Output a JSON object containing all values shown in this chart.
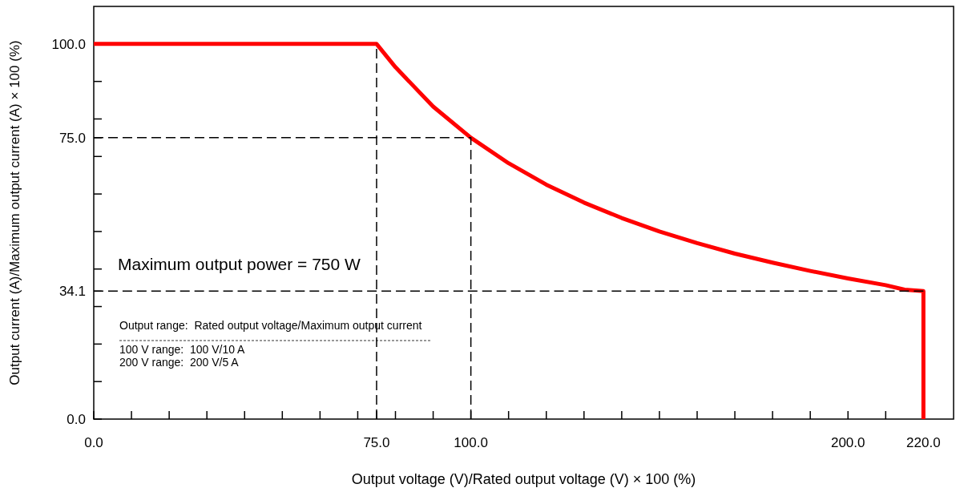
{
  "chart_data": {
    "type": "line",
    "xlabel": "Output voltage (V)/Rated output voltage (V) × 100 (%)",
    "ylabel": "Output current (A)/Maximum output current (A) × 100 (%)",
    "xlim": [
      0,
      228
    ],
    "ylim": [
      0,
      110
    ],
    "xticks": [
      {
        "value": 0,
        "label": "0.0"
      },
      {
        "value": 10,
        "label": null
      },
      {
        "value": 20,
        "label": null
      },
      {
        "value": 30,
        "label": null
      },
      {
        "value": 40,
        "label": null
      },
      {
        "value": 50,
        "label": null
      },
      {
        "value": 60,
        "label": null
      },
      {
        "value": 70,
        "label": null
      },
      {
        "value": 75,
        "label": "75.0"
      },
      {
        "value": 80,
        "label": null
      },
      {
        "value": 90,
        "label": null
      },
      {
        "value": 100,
        "label": "100.0"
      },
      {
        "value": 110,
        "label": null
      },
      {
        "value": 120,
        "label": null
      },
      {
        "value": 130,
        "label": null
      },
      {
        "value": 140,
        "label": null
      },
      {
        "value": 150,
        "label": null
      },
      {
        "value": 160,
        "label": null
      },
      {
        "value": 170,
        "label": null
      },
      {
        "value": 180,
        "label": null
      },
      {
        "value": 190,
        "label": null
      },
      {
        "value": 200,
        "label": "200.0"
      },
      {
        "value": 210,
        "label": null
      },
      {
        "value": 220,
        "label": "220.0"
      }
    ],
    "yticks": [
      {
        "value": 0,
        "label": "0.0"
      },
      {
        "value": 10,
        "label": null
      },
      {
        "value": 20,
        "label": null
      },
      {
        "value": 30,
        "label": null
      },
      {
        "value": 34.1,
        "label": "34.1"
      },
      {
        "value": 40,
        "label": null
      },
      {
        "value": 50,
        "label": null
      },
      {
        "value": 60,
        "label": null
      },
      {
        "value": 70,
        "label": null
      },
      {
        "value": 75,
        "label": "75.0"
      },
      {
        "value": 80,
        "label": null
      },
      {
        "value": 90,
        "label": null
      },
      {
        "value": 100,
        "label": "100.0"
      }
    ],
    "grid": false,
    "series": [
      {
        "color": "#000000",
        "line_style": "dashed",
        "x": [
          0,
          100,
          100
        ],
        "values": [
          75,
          75,
          0
        ]
      },
      {
        "color": "#000000",
        "line_style": "dashed",
        "x": [
          0,
          220
        ],
        "values": [
          34.1,
          34.1
        ]
      },
      {
        "color": "#ff0000",
        "line_style": "solid",
        "x": [
          0,
          75,
          80,
          90,
          100,
          110,
          120,
          130,
          140,
          150,
          160,
          170,
          180,
          190,
          200,
          210,
          215,
          220,
          220
        ],
        "values": [
          100,
          100,
          93.8,
          83.3,
          75,
          68.2,
          62.5,
          57.7,
          53.6,
          50,
          46.9,
          44.1,
          41.7,
          39.5,
          37.5,
          35.7,
          34.5,
          34.1,
          0
        ]
      }
    ],
    "ref_lines": [
      {
        "axis": "x",
        "value": 75,
        "color": "#000000",
        "line_style": "dashed"
      }
    ],
    "annotations": [
      "Maximum output power = 750 W",
      "Output range:  Rated output voltage/Maximum output current",
      "100 V range:  100 V/10 A",
      "200 V range:  200 V/5 A"
    ]
  }
}
